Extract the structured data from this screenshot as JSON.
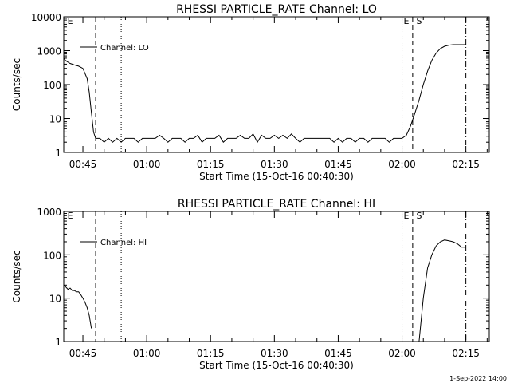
{
  "footer": {
    "date_stamp": "1-Sep-2022 14:00"
  },
  "chart_data": [
    {
      "type": "line",
      "title": "RHESSI PARTICLE_RATE Channel: LO",
      "xlabel": "Start Time (15-Oct-16 00:40:30)",
      "ylabel": "Counts/sec",
      "yscale": "log",
      "xlim": [
        "00:40:30",
        "02:20:30"
      ],
      "ylim": [
        1,
        10000
      ],
      "x_ticks": [
        "00:45",
        "01:00",
        "01:15",
        "01:30",
        "01:45",
        "02:00",
        "02:15"
      ],
      "y_ticks": [
        "1",
        "10",
        "100",
        "1000",
        "10000"
      ],
      "legend": "Channel: LO",
      "markers": [
        {
          "label": "E",
          "time": "00:41"
        },
        {
          "label": "E",
          "time": "02:00"
        },
        {
          "label": "S",
          "time": "02:03"
        }
      ],
      "vertical_lines": [
        {
          "time": "00:48",
          "style": "dashed"
        },
        {
          "time": "00:54",
          "style": "dotted"
        },
        {
          "time": "02:00",
          "style": "dotted"
        },
        {
          "time": "02:02.5",
          "style": "dashed"
        },
        {
          "time": "02:15",
          "style": "dashdot"
        }
      ],
      "series": [
        {
          "name": "Channel: LO",
          "segments": [
            {
              "x": [
                "00:40:30",
                "00:41",
                "00:42",
                "00:43",
                "00:44",
                "00:45",
                "00:46",
                "00:46.5",
                "00:47",
                "00:47.5",
                "00:48",
                "00:49",
                "00:50",
                "00:51",
                "00:52",
                "00:53",
                "00:54",
                "00:55",
                "00:56",
                "00:57",
                "00:58",
                "00:59",
                "01:00",
                "01:01",
                "01:02",
                "01:03",
                "01:04",
                "01:05",
                "01:06",
                "01:07",
                "01:08",
                "01:09",
                "01:10",
                "01:11",
                "01:12",
                "01:13",
                "01:14",
                "01:15",
                "01:16",
                "01:17",
                "01:18",
                "01:19",
                "01:20",
                "01:21",
                "01:22",
                "01:23",
                "01:24",
                "01:25",
                "01:26",
                "01:27",
                "01:28",
                "01:29",
                "01:30",
                "01:31",
                "01:32",
                "01:33",
                "01:34",
                "01:35",
                "01:36",
                "01:37",
                "01:38",
                "01:39",
                "01:40",
                "01:41",
                "01:42",
                "01:43",
                "01:44",
                "01:45",
                "01:46",
                "01:47",
                "01:48",
                "01:49",
                "01:50",
                "01:51",
                "01:52",
                "01:53",
                "01:54",
                "01:55",
                "01:56",
                "01:57",
                "01:58",
                "01:59",
                "02:00",
                "02:01",
                "02:02",
                "02:03",
                "02:04",
                "02:05",
                "02:06",
                "02:07",
                "02:08",
                "02:09",
                "02:10",
                "02:11",
                "02:12",
                "02:13",
                "02:14",
                "02:15"
              ],
              "values": [
                600,
                500,
                420,
                380,
                350,
                300,
                150,
                60,
                15,
                4,
                2.6,
                2.6,
                2.0,
                2.6,
                2.0,
                2.6,
                2.0,
                2.6,
                2.6,
                2.6,
                2.0,
                2.6,
                2.6,
                2.6,
                2.6,
                3.2,
                2.6,
                2.0,
                2.6,
                2.6,
                2.6,
                2.0,
                2.6,
                2.6,
                3.2,
                2.0,
                2.6,
                2.6,
                2.6,
                3.2,
                2.0,
                2.6,
                2.6,
                2.6,
                3.2,
                2.6,
                2.6,
                3.5,
                2.0,
                3.2,
                2.6,
                2.6,
                3.2,
                2.6,
                3.2,
                2.6,
                3.5,
                2.6,
                2.0,
                2.6,
                2.6,
                2.6,
                2.6,
                2.6,
                2.6,
                2.6,
                2.0,
                2.6,
                2.0,
                2.6,
                2.6,
                2.0,
                2.6,
                2.6,
                2.0,
                2.6,
                2.6,
                2.6,
                2.6,
                2.0,
                2.6,
                2.6,
                2.6,
                3.2,
                6,
                14,
                35,
                100,
                250,
                520,
                850,
                1150,
                1350,
                1450,
                1500,
                1500,
                1500,
                1500
              ]
            }
          ]
        }
      ]
    },
    {
      "type": "line",
      "title": "RHESSI PARTICLE_RATE Channel: HI",
      "xlabel": "Start Time (15-Oct-16 00:40:30)",
      "ylabel": "Counts/sec",
      "yscale": "log",
      "xlim": [
        "00:40:30",
        "02:20:30"
      ],
      "ylim": [
        1,
        1000
      ],
      "x_ticks": [
        "00:45",
        "01:00",
        "01:15",
        "01:30",
        "01:45",
        "02:00",
        "02:15"
      ],
      "y_ticks": [
        "1",
        "10",
        "100",
        "1000"
      ],
      "legend": "Channel: HI",
      "markers": [
        {
          "label": "E",
          "time": "00:41"
        },
        {
          "label": "E",
          "time": "02:00"
        },
        {
          "label": "S",
          "time": "02:03"
        }
      ],
      "vertical_lines": [
        {
          "time": "00:48",
          "style": "dashed"
        },
        {
          "time": "00:54",
          "style": "dotted"
        },
        {
          "time": "02:00",
          "style": "dotted"
        },
        {
          "time": "02:02.5",
          "style": "dashed"
        },
        {
          "time": "02:15",
          "style": "dashdot"
        }
      ],
      "series": [
        {
          "name": "Channel: HI",
          "segments": [
            {
              "x": [
                "00:40:30",
                "00:41",
                "00:41.5",
                "00:42",
                "00:42.5",
                "00:43",
                "00:43.5",
                "00:44",
                "00:44.5",
                "00:45",
                "00:45.5",
                "00:46",
                "00:46.5",
                "00:47"
              ],
              "values": [
                20,
                18,
                16,
                17,
                15,
                15,
                14,
                14,
                12,
                10,
                8,
                6,
                4,
                2
              ]
            },
            {
              "x": [
                "02:04",
                "02:05",
                "02:06",
                "02:07",
                "02:08",
                "02:09",
                "02:10",
                "02:11",
                "02:12",
                "02:13",
                "02:14",
                "02:15"
              ],
              "values": [
                1,
                10,
                50,
                100,
                160,
                200,
                220,
                210,
                200,
                180,
                150,
                150
              ]
            }
          ]
        }
      ]
    }
  ]
}
